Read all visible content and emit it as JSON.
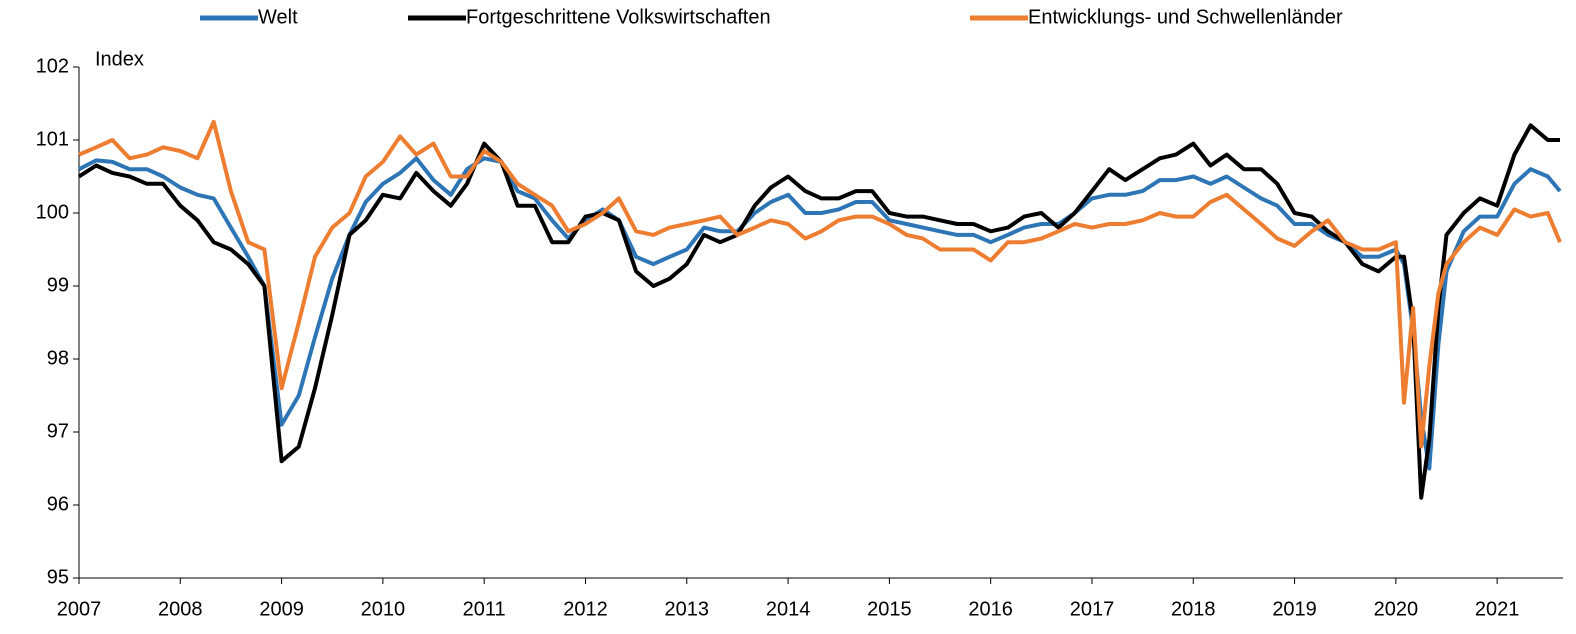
{
  "chart_data": {
    "type": "line",
    "y_label": "Index",
    "x": [
      2007.0,
      2007.17,
      2007.33,
      2007.5,
      2007.67,
      2007.83,
      2008.0,
      2008.17,
      2008.33,
      2008.5,
      2008.67,
      2008.83,
      2009.0,
      2009.17,
      2009.33,
      2009.5,
      2009.67,
      2009.83,
      2010.0,
      2010.17,
      2010.33,
      2010.5,
      2010.67,
      2010.83,
      2011.0,
      2011.17,
      2011.33,
      2011.5,
      2011.67,
      2011.83,
      2012.0,
      2012.17,
      2012.33,
      2012.5,
      2012.67,
      2012.83,
      2013.0,
      2013.17,
      2013.33,
      2013.5,
      2013.67,
      2013.83,
      2014.0,
      2014.17,
      2014.33,
      2014.5,
      2014.67,
      2014.83,
      2015.0,
      2015.17,
      2015.33,
      2015.5,
      2015.67,
      2015.83,
      2016.0,
      2016.17,
      2016.33,
      2016.5,
      2016.67,
      2016.83,
      2017.0,
      2017.17,
      2017.33,
      2017.5,
      2017.67,
      2017.83,
      2018.0,
      2018.17,
      2018.33,
      2018.5,
      2018.67,
      2018.83,
      2019.0,
      2019.17,
      2019.33,
      2019.5,
      2019.67,
      2019.83,
      2020.0,
      2020.08,
      2020.17,
      2020.25,
      2020.33,
      2020.42,
      2020.5,
      2020.67,
      2020.83,
      2021.0,
      2021.17,
      2021.33,
      2021.5,
      2021.62
    ],
    "series": [
      {
        "name": "Welt",
        "color": "#2e75b6",
        "values": [
          100.6,
          100.72,
          100.7,
          100.6,
          100.6,
          100.5,
          100.35,
          100.25,
          100.2,
          99.8,
          99.4,
          99.0,
          97.1,
          97.5,
          98.3,
          99.1,
          99.7,
          100.15,
          100.4,
          100.55,
          100.75,
          100.45,
          100.25,
          100.6,
          100.75,
          100.7,
          100.3,
          100.2,
          99.9,
          99.65,
          99.9,
          100.05,
          99.9,
          99.4,
          99.3,
          99.4,
          99.5,
          99.8,
          99.75,
          99.75,
          100.0,
          100.15,
          100.25,
          100.0,
          100.0,
          100.05,
          100.15,
          100.15,
          99.9,
          99.85,
          99.8,
          99.75,
          99.7,
          99.7,
          99.6,
          99.7,
          99.8,
          99.85,
          99.85,
          100.0,
          100.2,
          100.25,
          100.25,
          100.3,
          100.45,
          100.45,
          100.5,
          100.4,
          100.5,
          100.35,
          100.2,
          100.1,
          99.85,
          99.85,
          99.7,
          99.6,
          99.4,
          99.4,
          99.5,
          99.3,
          98.4,
          97.2,
          96.5,
          98.2,
          99.2,
          99.75,
          99.95,
          99.95,
          100.4,
          100.6,
          100.5,
          100.3
        ]
      },
      {
        "name": "Fortgeschrittene Volkswirtschaften",
        "color": "#000000",
        "values": [
          100.5,
          100.65,
          100.55,
          100.5,
          100.4,
          100.4,
          100.1,
          99.9,
          99.6,
          99.5,
          99.3,
          99.0,
          96.6,
          96.8,
          97.6,
          98.6,
          99.7,
          99.9,
          100.25,
          100.2,
          100.55,
          100.3,
          100.1,
          100.4,
          100.95,
          100.7,
          100.1,
          100.1,
          99.6,
          99.6,
          99.95,
          100.0,
          99.9,
          99.2,
          99.0,
          99.1,
          99.3,
          99.7,
          99.6,
          99.7,
          100.1,
          100.35,
          100.5,
          100.3,
          100.2,
          100.2,
          100.3,
          100.3,
          100.0,
          99.95,
          99.95,
          99.9,
          99.85,
          99.85,
          99.75,
          99.8,
          99.95,
          100.0,
          99.8,
          100.0,
          100.3,
          100.6,
          100.45,
          100.6,
          100.75,
          100.8,
          100.95,
          100.65,
          100.8,
          100.6,
          100.6,
          100.4,
          100.0,
          99.95,
          99.75,
          99.6,
          99.3,
          99.2,
          99.4,
          99.4,
          98.5,
          96.1,
          96.9,
          98.7,
          99.7,
          100.0,
          100.2,
          100.1,
          100.8,
          101.2,
          101.0,
          101.0
        ]
      },
      {
        "name": "Entwicklungs- und Schwellenländer",
        "color": "#ed7d31",
        "values": [
          100.8,
          100.9,
          101.0,
          100.75,
          100.8,
          100.9,
          100.85,
          100.75,
          101.25,
          100.3,
          99.6,
          99.5,
          97.6,
          98.5,
          99.4,
          99.8,
          100.0,
          100.5,
          100.7,
          101.05,
          100.8,
          100.95,
          100.5,
          100.5,
          100.85,
          100.7,
          100.4,
          100.25,
          100.1,
          99.75,
          99.85,
          100.0,
          100.2,
          99.75,
          99.7,
          99.8,
          99.85,
          99.9,
          99.95,
          99.7,
          99.8,
          99.9,
          99.85,
          99.65,
          99.75,
          99.9,
          99.95,
          99.95,
          99.85,
          99.7,
          99.65,
          99.5,
          99.5,
          99.5,
          99.35,
          99.6,
          99.6,
          99.65,
          99.75,
          99.85,
          99.8,
          99.85,
          99.85,
          99.9,
          100.0,
          99.95,
          99.95,
          100.15,
          100.25,
          100.05,
          99.85,
          99.65,
          99.55,
          99.75,
          99.9,
          99.6,
          99.5,
          99.5,
          99.6,
          97.4,
          98.7,
          96.8,
          97.9,
          98.9,
          99.3,
          99.6,
          99.8,
          99.7,
          100.05,
          99.95,
          100.0,
          99.6
        ]
      }
    ],
    "xlim": [
      2007,
      2021.65
    ],
    "xticks": [
      2007,
      2008,
      2009,
      2010,
      2011,
      2012,
      2013,
      2014,
      2015,
      2016,
      2017,
      2018,
      2019,
      2020,
      2021
    ],
    "ylim": [
      95,
      102
    ],
    "yticks": [
      95,
      96,
      97,
      98,
      99,
      100,
      101,
      102
    ],
    "legend": "top"
  }
}
